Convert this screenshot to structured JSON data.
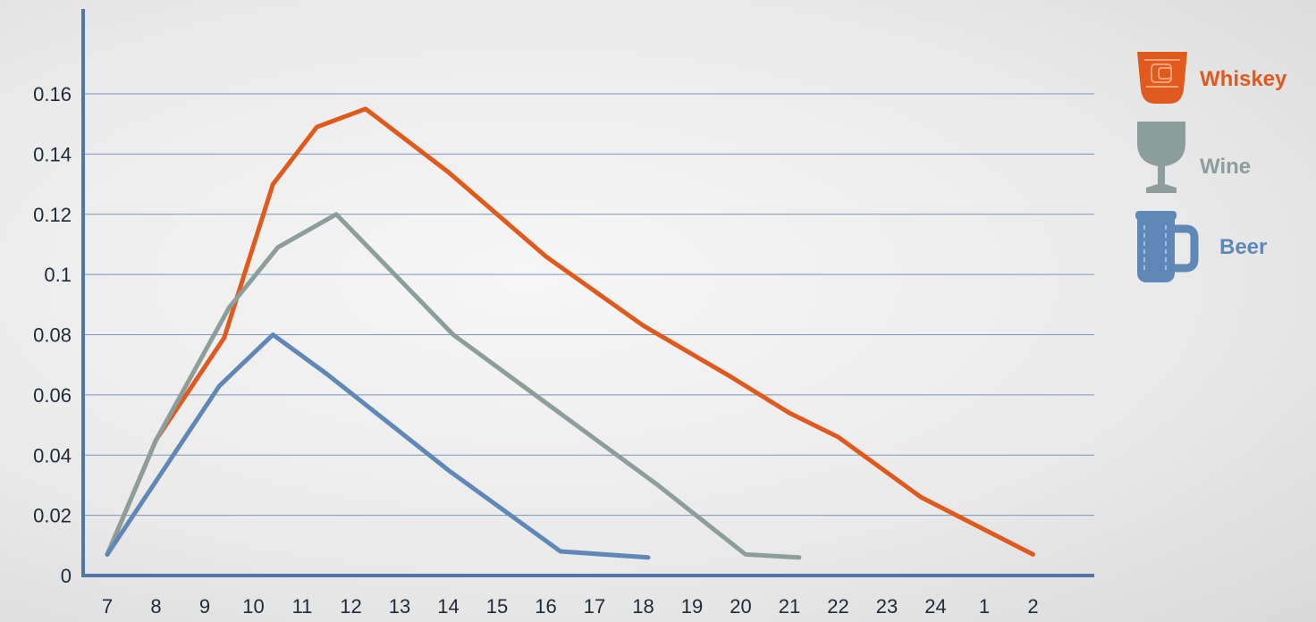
{
  "chart_data": {
    "type": "line",
    "title": "",
    "xlabel": "",
    "ylabel": "",
    "x_labels": [
      "7",
      "8",
      "9",
      "10",
      "11",
      "12",
      "13",
      "14",
      "15",
      "16",
      "17",
      "18",
      "19",
      "20",
      "21",
      "22",
      "23",
      "24",
      "1",
      "2"
    ],
    "y_ticks": [
      "0",
      "0.02",
      "0.04",
      "0.06",
      "0.08",
      "0.1",
      "0.12",
      "0.14",
      "0.16"
    ],
    "ylim": [
      0,
      0.18
    ],
    "grid": "horizontal",
    "legend_position": "right",
    "series": [
      {
        "name": "Whiskey",
        "color": "#e05a1e",
        "icon": "whiskey-glass-icon",
        "points": [
          [
            7,
            0.007
          ],
          [
            8,
            0.045
          ],
          [
            9.4,
            0.079
          ],
          [
            10.4,
            0.13
          ],
          [
            11.3,
            0.149
          ],
          [
            12.3,
            0.155
          ],
          [
            14,
            0.134
          ],
          [
            16,
            0.106
          ],
          [
            18,
            0.083
          ],
          [
            19.8,
            0.066
          ],
          [
            21,
            0.054
          ],
          [
            22,
            0.046
          ],
          [
            23.7,
            0.026
          ],
          [
            26,
            0.007
          ]
        ]
      },
      {
        "name": "Wine",
        "color": "#8c9e9c",
        "icon": "wine-glass-icon",
        "points": [
          [
            7,
            0.007
          ],
          [
            8,
            0.045
          ],
          [
            9.5,
            0.089
          ],
          [
            10.5,
            0.109
          ],
          [
            11.7,
            0.12
          ],
          [
            14.1,
            0.08
          ],
          [
            16.2,
            0.055
          ],
          [
            18.3,
            0.03
          ],
          [
            20.1,
            0.007
          ],
          [
            21.2,
            0.006
          ]
        ]
      },
      {
        "name": "Beer",
        "color": "#5f88b6",
        "icon": "beer-mug-icon",
        "points": [
          [
            7,
            0.007
          ],
          [
            9.3,
            0.063
          ],
          [
            10.4,
            0.08
          ],
          [
            11.5,
            0.067
          ],
          [
            14,
            0.035
          ],
          [
            16.3,
            0.008
          ],
          [
            18.1,
            0.006
          ]
        ]
      }
    ]
  }
}
